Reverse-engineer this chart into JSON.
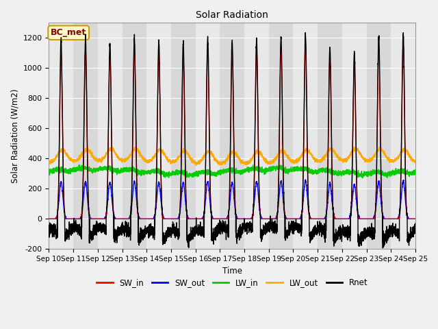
{
  "title": "Solar Radiation",
  "ylabel": "Solar Radiation (W/m2)",
  "xlabel": "Time",
  "ylim": [
    -200,
    1300
  ],
  "yticks": [
    -200,
    0,
    200,
    400,
    600,
    800,
    1000,
    1200
  ],
  "start_day": 10,
  "end_day": 25,
  "n_days": 15,
  "colors": {
    "SW_in": "#ff0000",
    "SW_out": "#0000ff",
    "LW_in": "#00cc00",
    "LW_out": "#ffaa00",
    "Rnet": "#000000"
  },
  "legend_label": "BC_met",
  "legend_bg": "#ffffcc",
  "legend_border": "#cc9900",
  "bg_color": "#f0f0f0",
  "band_colors": [
    "#e8e8e8",
    "#d8d8d8"
  ],
  "gridcolor": "#ffffff",
  "linewidth": 1.0,
  "figsize": [
    6.4,
    4.8
  ],
  "dpi": 100
}
